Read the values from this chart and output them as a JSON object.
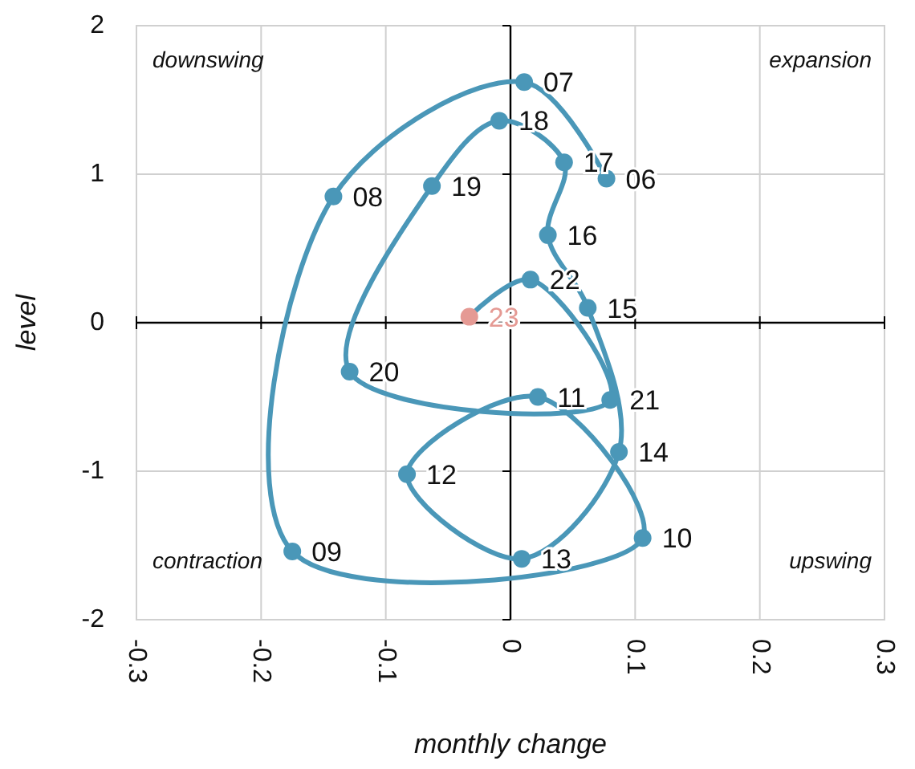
{
  "chart_data": {
    "type": "line",
    "xlabel": "monthly change",
    "ylabel": "level",
    "series": [
      {
        "color": "#4a97b8",
        "marker": "circle",
        "x": [
          0.077,
          0.011,
          -0.142,
          -0.175,
          0.106,
          0.022,
          -0.083,
          0.009,
          0.087,
          0.062,
          0.03,
          0.043,
          -0.009,
          -0.063,
          -0.129,
          0.08,
          0.016,
          -0.033
        ],
        "values": [
          0.97,
          1.62,
          0.85,
          -1.54,
          -1.45,
          -0.5,
          -1.02,
          -1.59,
          -0.87,
          0.1,
          0.59,
          1.08,
          1.36,
          0.92,
          -0.33,
          -0.52,
          0.29,
          0.04
        ],
        "colors": [
          "#4a97b8",
          "#4a97b8",
          "#4a97b8",
          "#4a97b8",
          "#4a97b8",
          "#4a97b8",
          "#4a97b8",
          "#4a97b8",
          "#4a97b8",
          "#4a97b8",
          "#4a97b8",
          "#4a97b8",
          "#4a97b8",
          "#4a97b8",
          "#4a97b8",
          "#4a97b8",
          "#4a97b8",
          "#e59a94"
        ]
      }
    ],
    "annotations": [
      "downswing",
      "expansion",
      "contraction",
      "upswing",
      {
        "text": "06",
        "x": 0.077,
        "y": 0.97
      },
      {
        "text": "07",
        "x": 0.011,
        "y": 1.62
      },
      {
        "text": "08",
        "x": -0.142,
        "y": 0.85
      },
      {
        "text": "09",
        "x": -0.175,
        "y": -1.54
      },
      {
        "text": "10",
        "x": 0.106,
        "y": -1.45
      },
      {
        "text": "11",
        "x": 0.022,
        "y": -0.5
      },
      {
        "text": "12",
        "x": -0.083,
        "y": -1.02
      },
      {
        "text": "13",
        "x": 0.009,
        "y": -1.59
      },
      {
        "text": "14",
        "x": 0.087,
        "y": -0.87
      },
      {
        "text": "15",
        "x": 0.062,
        "y": 0.1
      },
      {
        "text": "16",
        "x": 0.03,
        "y": 0.59
      },
      {
        "text": "17",
        "x": 0.043,
        "y": 1.08
      },
      {
        "text": "18",
        "x": -0.009,
        "y": 1.36
      },
      {
        "text": "19",
        "x": -0.063,
        "y": 0.92
      },
      {
        "text": "20",
        "x": -0.129,
        "y": -0.33
      },
      {
        "text": "21",
        "x": 0.08,
        "y": -0.52
      },
      {
        "text": "22",
        "x": 0.016,
        "y": 0.29
      },
      {
        "text": "23",
        "x": -0.033,
        "y": 0.04
      }
    ],
    "xlim": [
      -0.3,
      0.3
    ],
    "xticks": [
      -0.3,
      -0.2,
      -0.1,
      0,
      0.1,
      0.2,
      0.3
    ],
    "ylim": [
      -2,
      2
    ],
    "yticks": [
      -2,
      -1,
      0,
      1,
      2
    ],
    "grid": true
  }
}
